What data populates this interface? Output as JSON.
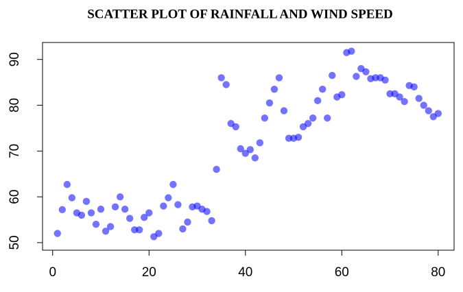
{
  "chart_data": {
    "type": "scatter",
    "title": "SCATTER PLOT OF RAINFALL AND WIND SPEED",
    "x": [
      1,
      2,
      3,
      4,
      5,
      6,
      7,
      8,
      9,
      10,
      11,
      12,
      13,
      14,
      15,
      16,
      17,
      18,
      19,
      20,
      21,
      22,
      23,
      24,
      25,
      26,
      27,
      28,
      29,
      30,
      31,
      32,
      33,
      34,
      35,
      36,
      37,
      38,
      39,
      40,
      41,
      42,
      43,
      44,
      45,
      46,
      47,
      48,
      49,
      50,
      51,
      52,
      53,
      54,
      55,
      56,
      57,
      58,
      59,
      60,
      61,
      62,
      63,
      64,
      65,
      66,
      67,
      68,
      69,
      70,
      71,
      72,
      73,
      74,
      75,
      76,
      77,
      78,
      79,
      80
    ],
    "values": [
      52,
      57.2,
      62.7,
      59.8,
      56.5,
      56,
      59,
      56.5,
      54,
      57.3,
      52.5,
      53.5,
      57.8,
      60,
      57.3,
      55.3,
      52.8,
      52.8,
      55.5,
      56.5,
      51.3,
      52,
      58,
      59.8,
      62.7,
      58.3,
      53,
      54.5,
      57.8,
      58,
      57.3,
      56.8,
      54.8,
      66,
      86,
      84.5,
      76,
      75.3,
      70.5,
      69.5,
      70.3,
      68.5,
      71.8,
      77.2,
      80.5,
      83.5,
      86,
      78.8,
      72.8,
      72.8,
      73,
      75.3,
      76,
      77.2,
      81,
      83.5,
      77.2,
      86.5,
      81.8,
      82.3,
      91.5,
      91.8,
      86.3,
      88,
      87.3,
      85.8,
      86,
      86,
      85.5,
      82.5,
      82.5,
      81.8,
      80.8,
      84.3,
      84,
      81.5,
      80,
      78.8,
      77.5,
      78.2
    ],
    "color": "#0000ff",
    "xlim": [
      -2.1,
      83.3
    ],
    "xticks": [
      0,
      20,
      40,
      60,
      80
    ],
    "ylim": [
      48.35,
      93.7
    ],
    "yticks": [
      50,
      60,
      70,
      80,
      90
    ]
  }
}
